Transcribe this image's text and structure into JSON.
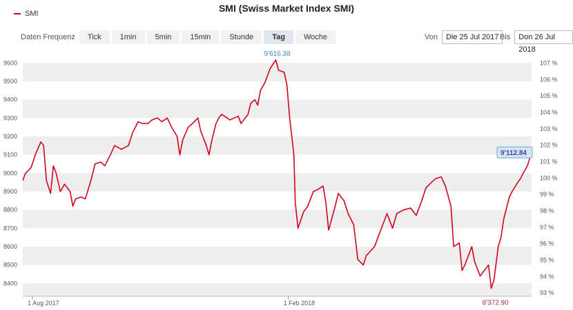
{
  "title": "SMI (Swiss Market Index SMI)",
  "legend": {
    "label": "SMI",
    "color": "#d0021b"
  },
  "toolbar": {
    "frequency_label": "Daten Frequenz",
    "buttons": [
      {
        "label": "Tick",
        "active": false
      },
      {
        "label": "1min",
        "active": false
      },
      {
        "label": "5min",
        "active": false
      },
      {
        "label": "15min",
        "active": false
      },
      {
        "label": "Stunde",
        "active": false
      },
      {
        "label": "Tag",
        "active": true
      },
      {
        "label": "Woche",
        "active": false
      }
    ]
  },
  "range": {
    "from_label": "Von",
    "from_value": "Die 25 Jul 2017",
    "to_label": "Bis",
    "to_value": "Don 26 Jul 2018"
  },
  "chart_data": {
    "type": "line",
    "title": "SMI (Swiss Market Index SMI)",
    "ylim": [
      8330,
      9680
    ],
    "left_ticks": [
      "9600",
      "9500",
      "9400",
      "9300",
      "9200",
      "9100",
      "9000",
      "8900",
      "8800",
      "8700",
      "8600",
      "8500",
      "8400"
    ],
    "right_ticks": [
      "107 %",
      "106 %",
      "105 %",
      "104 %",
      "103 %",
      "102 %",
      "101 %",
      "100 %",
      "99 %",
      "98 %",
      "97 %",
      "96 %",
      "95 %",
      "94 %",
      "93 %"
    ],
    "right_ylim": [
      92.8,
      107.9
    ],
    "x_ticks": [
      {
        "label": "1 Aug 2017",
        "value": "2017-08-01"
      },
      {
        "label": "1 Feb 2018",
        "value": "2018-02-01"
      }
    ],
    "xlim": [
      "2017-07-25",
      "2018-07-26"
    ],
    "grid": "horizontal bands",
    "annotations": {
      "max": {
        "label": "9'616.38",
        "date": "2018-01-23",
        "value": 9616.38
      },
      "min": {
        "label": "8'372.90",
        "date": "2018-06-27",
        "value": 8372.9
      },
      "last": {
        "label": "9'112.84",
        "date": "2018-07-26",
        "value": 9112.84
      }
    },
    "series": [
      {
        "name": "SMI",
        "color": "#d0021b",
        "points": [
          [
            "2017-07-25",
            8960
          ],
          [
            "2017-07-27",
            9000
          ],
          [
            "2017-07-31",
            9030
          ],
          [
            "2017-08-03",
            9100
          ],
          [
            "2017-08-07",
            9170
          ],
          [
            "2017-08-09",
            9150
          ],
          [
            "2017-08-11",
            8960
          ],
          [
            "2017-08-14",
            8890
          ],
          [
            "2017-08-16",
            9040
          ],
          [
            "2017-08-18",
            9000
          ],
          [
            "2017-08-21",
            8900
          ],
          [
            "2017-08-24",
            8940
          ],
          [
            "2017-08-28",
            8900
          ],
          [
            "2017-08-30",
            8820
          ],
          [
            "2017-09-01",
            8860
          ],
          [
            "2017-09-05",
            8870
          ],
          [
            "2017-09-08",
            8860
          ],
          [
            "2017-09-12",
            8960
          ],
          [
            "2017-09-15",
            9050
          ],
          [
            "2017-09-19",
            9060
          ],
          [
            "2017-09-22",
            9040
          ],
          [
            "2017-09-26",
            9100
          ],
          [
            "2017-09-29",
            9150
          ],
          [
            "2017-10-04",
            9130
          ],
          [
            "2017-10-09",
            9150
          ],
          [
            "2017-10-12",
            9220
          ],
          [
            "2017-10-16",
            9280
          ],
          [
            "2017-10-19",
            9270
          ],
          [
            "2017-10-23",
            9270
          ],
          [
            "2017-10-26",
            9290
          ],
          [
            "2017-10-30",
            9300
          ],
          [
            "2017-11-02",
            9280
          ],
          [
            "2017-11-06",
            9300
          ],
          [
            "2017-11-09",
            9250
          ],
          [
            "2017-11-13",
            9200
          ],
          [
            "2017-11-15",
            9100
          ],
          [
            "2017-11-17",
            9180
          ],
          [
            "2017-11-21",
            9250
          ],
          [
            "2017-11-24",
            9270
          ],
          [
            "2017-11-28",
            9300
          ],
          [
            "2017-11-30",
            9230
          ],
          [
            "2017-12-04",
            9150
          ],
          [
            "2017-12-06",
            9100
          ],
          [
            "2017-12-08",
            9180
          ],
          [
            "2017-12-11",
            9270
          ],
          [
            "2017-12-13",
            9300
          ],
          [
            "2017-12-15",
            9320
          ],
          [
            "2017-12-19",
            9300
          ],
          [
            "2017-12-21",
            9290
          ],
          [
            "2017-12-27",
            9310
          ],
          [
            "2017-12-29",
            9270
          ],
          [
            "2018-01-03",
            9320
          ],
          [
            "2018-01-05",
            9380
          ],
          [
            "2018-01-08",
            9400
          ],
          [
            "2018-01-10",
            9370
          ],
          [
            "2018-01-12",
            9450
          ],
          [
            "2018-01-15",
            9490
          ],
          [
            "2018-01-17",
            9530
          ],
          [
            "2018-01-19",
            9570
          ],
          [
            "2018-01-23",
            9616.38
          ],
          [
            "2018-01-25",
            9560
          ],
          [
            "2018-01-29",
            9550
          ],
          [
            "2018-01-31",
            9480
          ],
          [
            "2018-02-02",
            9300
          ],
          [
            "2018-02-05",
            9100
          ],
          [
            "2018-02-06",
            8840
          ],
          [
            "2018-02-08",
            8700
          ],
          [
            "2018-02-12",
            8790
          ],
          [
            "2018-02-15",
            8820
          ],
          [
            "2018-02-19",
            8900
          ],
          [
            "2018-02-22",
            8910
          ],
          [
            "2018-02-26",
            8930
          ],
          [
            "2018-02-28",
            8840
          ],
          [
            "2018-03-02",
            8690
          ],
          [
            "2018-03-06",
            8800
          ],
          [
            "2018-03-09",
            8890
          ],
          [
            "2018-03-13",
            8850
          ],
          [
            "2018-03-16",
            8780
          ],
          [
            "2018-03-20",
            8720
          ],
          [
            "2018-03-23",
            8530
          ],
          [
            "2018-03-27",
            8500
          ],
          [
            "2018-03-29",
            8550
          ],
          [
            "2018-04-04",
            8600
          ],
          [
            "2018-04-09",
            8700
          ],
          [
            "2018-04-13",
            8780
          ],
          [
            "2018-04-17",
            8700
          ],
          [
            "2018-04-20",
            8780
          ],
          [
            "2018-04-25",
            8800
          ],
          [
            "2018-04-30",
            8810
          ],
          [
            "2018-05-04",
            8770
          ],
          [
            "2018-05-08",
            8850
          ],
          [
            "2018-05-11",
            8920
          ],
          [
            "2018-05-15",
            8950
          ],
          [
            "2018-05-18",
            8970
          ],
          [
            "2018-05-22",
            8980
          ],
          [
            "2018-05-25",
            8930
          ],
          [
            "2018-05-29",
            8820
          ],
          [
            "2018-05-31",
            8600
          ],
          [
            "2018-06-04",
            8620
          ],
          [
            "2018-06-06",
            8470
          ],
          [
            "2018-06-08",
            8500
          ],
          [
            "2018-06-11",
            8560
          ],
          [
            "2018-06-13",
            8600
          ],
          [
            "2018-06-15",
            8520
          ],
          [
            "2018-06-19",
            8440
          ],
          [
            "2018-06-21",
            8460
          ],
          [
            "2018-06-25",
            8500
          ],
          [
            "2018-06-27",
            8372.9
          ],
          [
            "2018-06-29",
            8420
          ],
          [
            "2018-07-02",
            8600
          ],
          [
            "2018-07-04",
            8650
          ],
          [
            "2018-07-06",
            8750
          ],
          [
            "2018-07-10",
            8870
          ],
          [
            "2018-07-12",
            8900
          ],
          [
            "2018-07-16",
            8950
          ],
          [
            "2018-07-18",
            8970
          ],
          [
            "2018-07-20",
            9000
          ],
          [
            "2018-07-23",
            9040
          ],
          [
            "2018-07-26",
            9112.84
          ]
        ]
      }
    ]
  }
}
